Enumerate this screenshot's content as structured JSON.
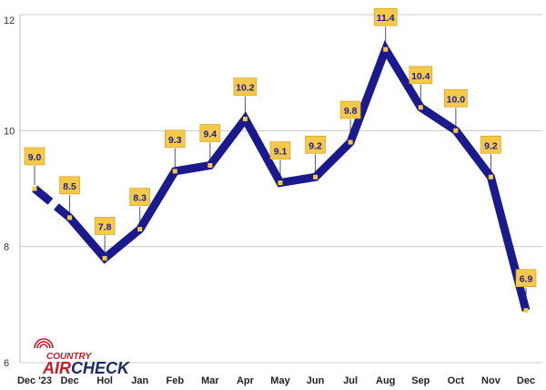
{
  "chart_data": {
    "type": "line",
    "categories": [
      "Dec '23",
      "Dec",
      "Hol",
      "Jan",
      "Feb",
      "Mar",
      "Apr",
      "May",
      "Jun",
      "Jul",
      "Aug",
      "Sep",
      "Oct",
      "Nov",
      "Dec"
    ],
    "values": [
      9.0,
      8.5,
      7.8,
      8.3,
      9.3,
      9.4,
      10.2,
      9.1,
      9.2,
      9.8,
      11.4,
      10.4,
      10.0,
      9.2,
      6.9
    ],
    "data_labels": [
      "9.0",
      "8.5",
      "7.8",
      "8.3",
      "9.3",
      "9.4",
      "10.2",
      "9.1",
      "9.2",
      "9.8",
      "11.4",
      "10.4",
      "10.0",
      "9.2",
      "6.9"
    ],
    "yticks": [
      "6",
      "8",
      "10",
      "12"
    ],
    "ylim": [
      6,
      12
    ],
    "break_after_index": 0,
    "title": "",
    "xlabel": "",
    "ylabel": "",
    "grid": "horizontal",
    "colors": {
      "line": "#1a1a8c",
      "label_fill": "#f7c948",
      "marker": "#f7c948",
      "grid": "#cccccc",
      "logo_red": "#c41b24",
      "logo_navy": "#1b2a6b"
    }
  },
  "logo": {
    "top": "COUNTRY",
    "air": "AIR",
    "check": "CHECK",
    "icon": "radio-waves-icon"
  }
}
